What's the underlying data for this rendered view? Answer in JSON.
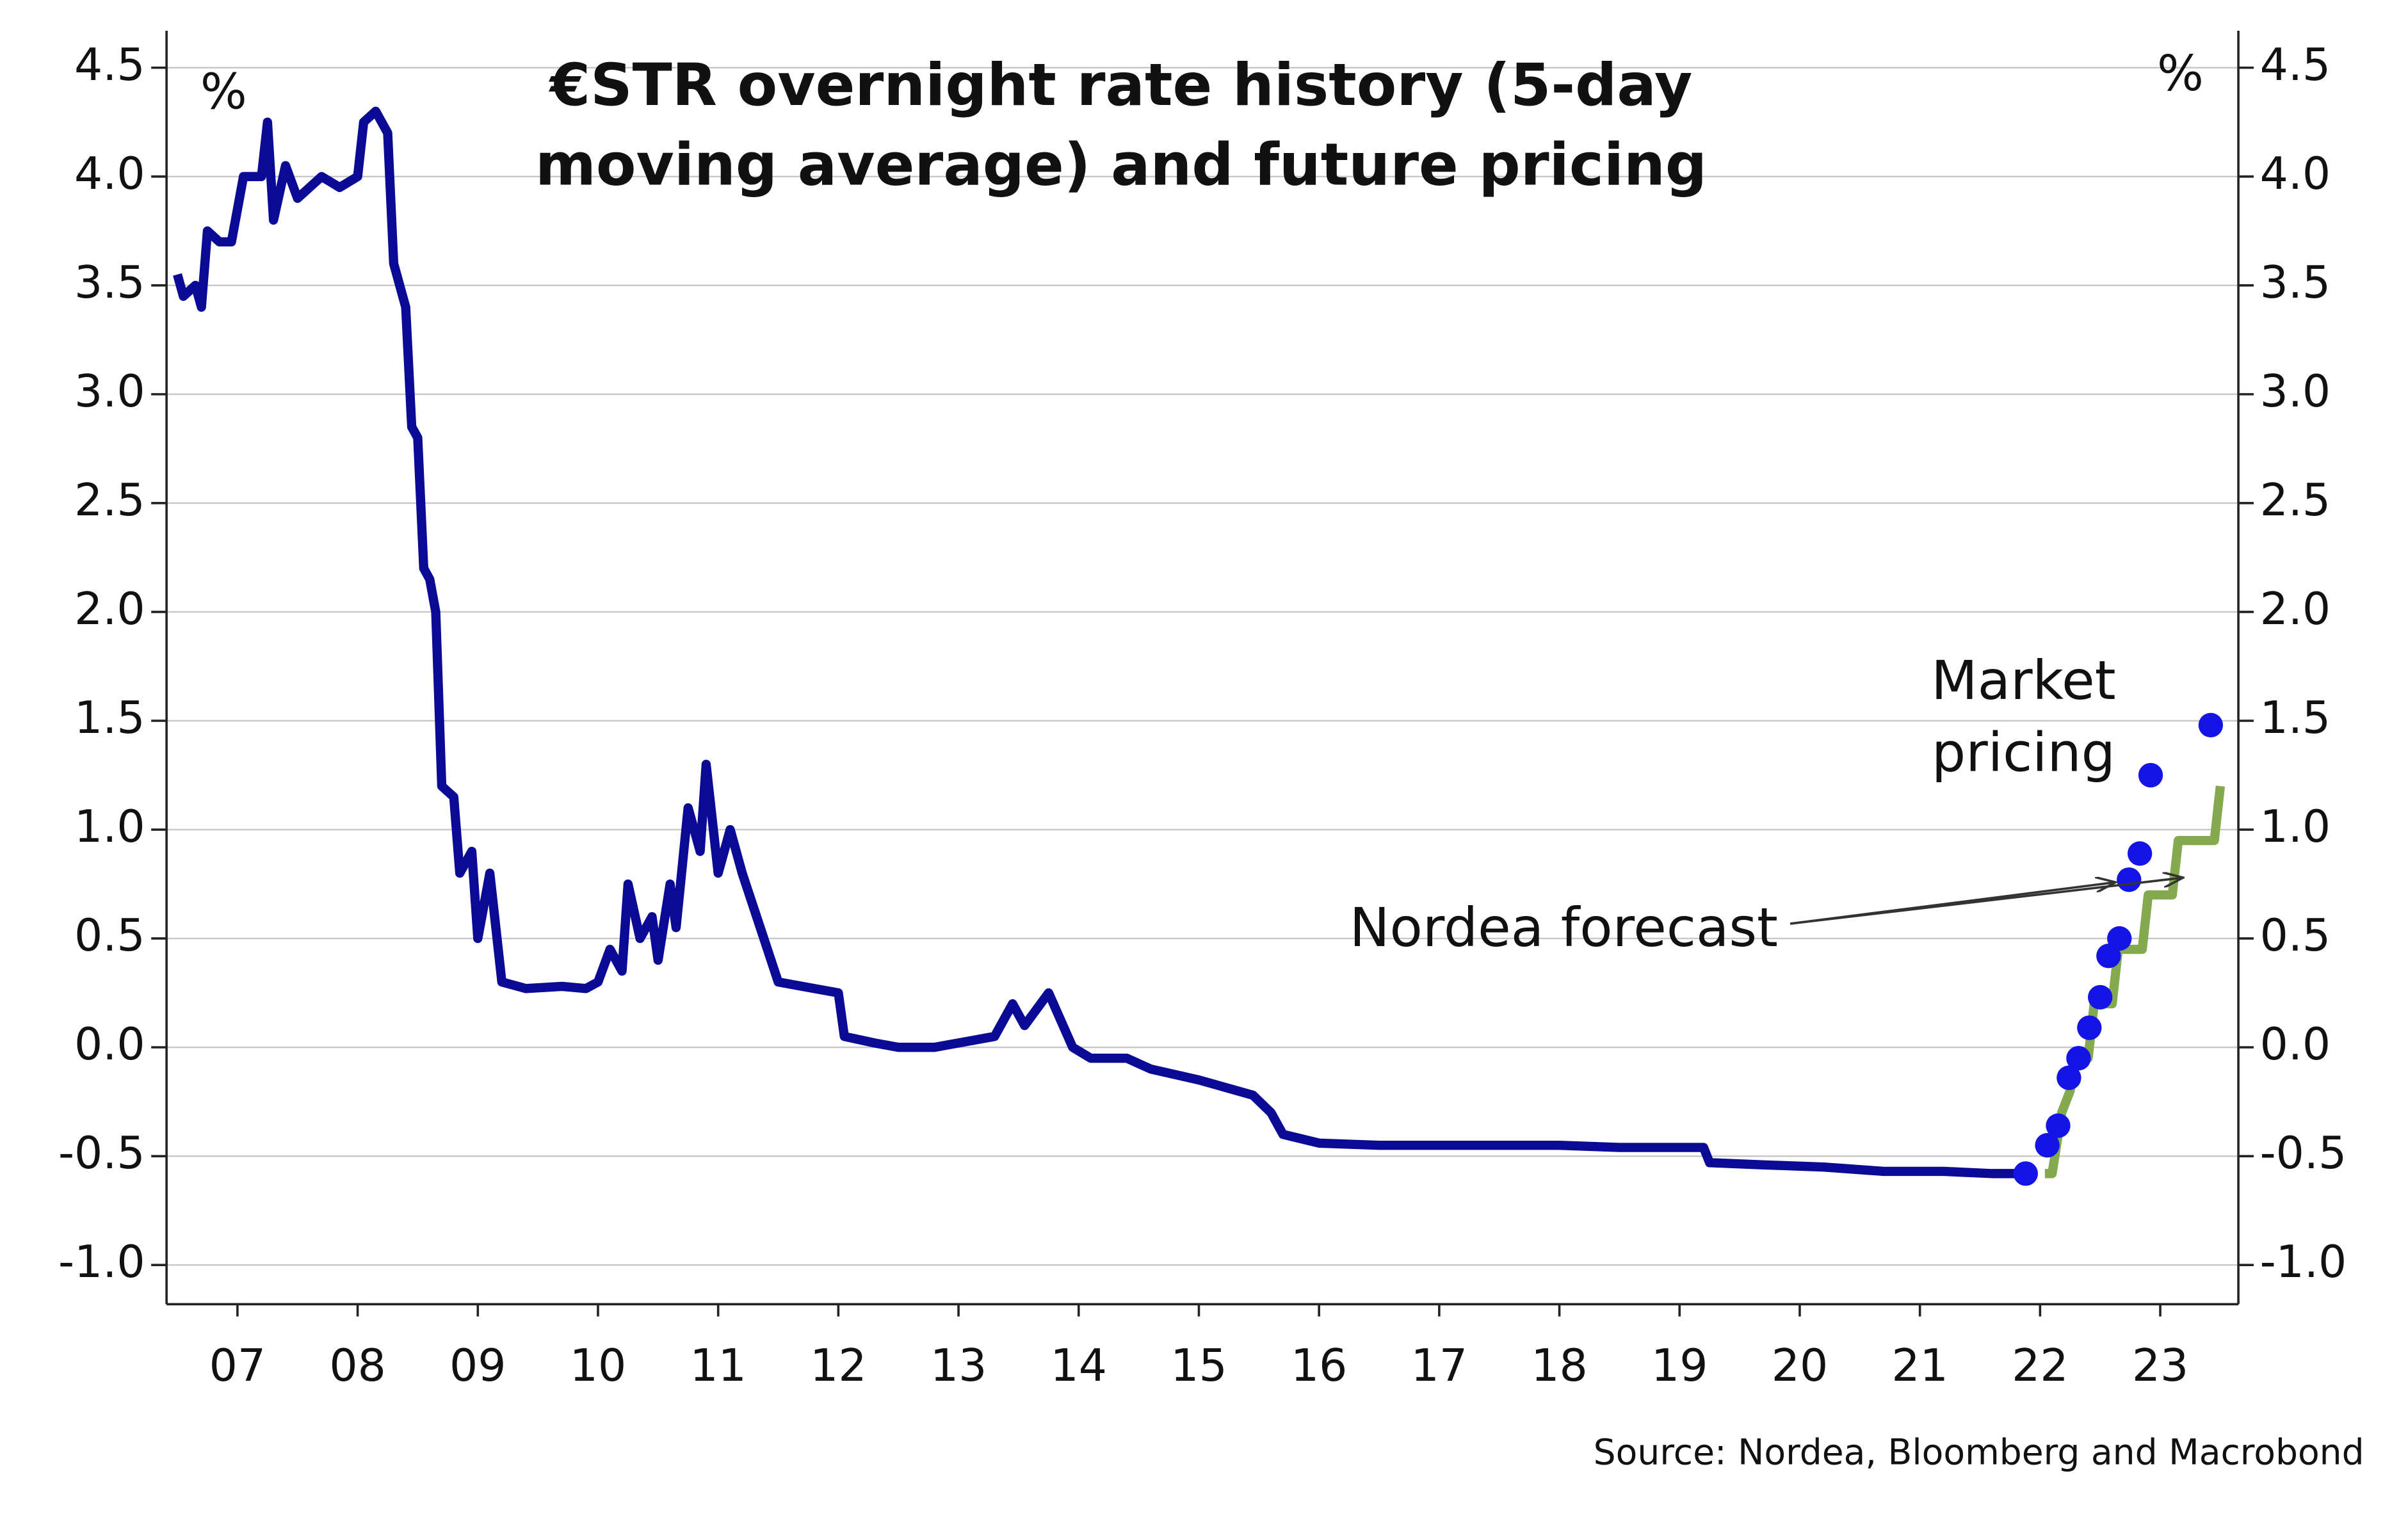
{
  "chart_data": {
    "type": "line",
    "title": [
      "€STR overnight rate history (5-day",
      "moving average) and future pricing"
    ],
    "y_unit": "%",
    "y2_unit": "%",
    "source": "Source: Nordea, Bloomberg and Macrobond",
    "annotations": [
      {
        "text": [
          "Market",
          "pricing"
        ],
        "color": "#1414e6"
      },
      {
        "text": "Nordea forecast",
        "color": "#84a94e"
      }
    ],
    "xlim": [
      2006.91,
      2024.15
    ],
    "xticks": [
      {
        "value": 2007.5,
        "label": "07"
      },
      {
        "value": 2008.5,
        "label": "08"
      },
      {
        "value": 2009.5,
        "label": "09"
      },
      {
        "value": 2010.5,
        "label": "10"
      },
      {
        "value": 2011.5,
        "label": "11"
      },
      {
        "value": 2012.5,
        "label": "12"
      },
      {
        "value": 2013.5,
        "label": "13"
      },
      {
        "value": 2014.5,
        "label": "14"
      },
      {
        "value": 2015.5,
        "label": "15"
      },
      {
        "value": 2016.5,
        "label": "16"
      },
      {
        "value": 2017.5,
        "label": "17"
      },
      {
        "value": 2018.5,
        "label": "18"
      },
      {
        "value": 2019.5,
        "label": "19"
      },
      {
        "value": 2020.5,
        "label": "20"
      },
      {
        "value": 2021.5,
        "label": "21"
      },
      {
        "value": 2022.5,
        "label": "22"
      },
      {
        "value": 2023.5,
        "label": "23"
      }
    ],
    "ylim": [
      -1.18,
      4.67
    ],
    "yticks": [
      4.5,
      {
        "value": 4,
        "label": "4.0"
      },
      3.5,
      {
        "value": 3,
        "label": "3.0"
      },
      2.5,
      {
        "value": 2,
        "label": "2.0"
      },
      1.5,
      {
        "value": 1,
        "label": "1.0"
      },
      0.5,
      {
        "value": 0,
        "label": "0.0"
      },
      -0.5,
      {
        "value": -1,
        "label": "-1.0"
      }
    ],
    "y2lim": [
      -1.18,
      4.67
    ],
    "y2ticks": [
      4.5,
      {
        "value": 4,
        "label": "4.0"
      },
      3.5,
      {
        "value": 3,
        "label": "3.0"
      },
      2.5,
      {
        "value": 2,
        "label": "2.0"
      },
      1.5,
      {
        "value": 1,
        "label": "1.0"
      },
      0.5,
      {
        "value": 0,
        "label": "0.0"
      },
      -0.5,
      {
        "value": -1,
        "label": "-1.0"
      }
    ],
    "grid": true,
    "series": [
      {
        "style": "line",
        "color": "#0a0a96",
        "x": [
          2007.0,
          2007.05,
          2007.15,
          2007.2,
          2007.25,
          2007.35,
          2007.45,
          2007.55,
          2007.7,
          2007.75,
          2007.8,
          2007.9,
          2008.0,
          2008.2,
          2008.35,
          2008.5,
          2008.55,
          2008.65,
          2008.75,
          2008.8,
          2008.9,
          2008.95,
          2009.0,
          2009.05,
          2009.1,
          2009.15,
          2009.2,
          2009.3,
          2009.35,
          2009.45,
          2009.5,
          2009.6,
          2009.7,
          2009.9,
          2010.2,
          2010.4,
          2010.5,
          2010.6,
          2010.7,
          2010.75,
          2010.85,
          2010.95,
          2011.0,
          2011.1,
          2011.15,
          2011.25,
          2011.35,
          2011.4,
          2011.5,
          2011.6,
          2011.7,
          2012.0,
          2012.3,
          2012.5,
          2012.55,
          2012.8,
          2013.0,
          2013.3,
          2013.5,
          2013.8,
          2013.95,
          2014.05,
          2014.25,
          2014.45,
          2014.6,
          2014.9,
          2015.1,
          2015.5,
          2015.95,
          2016.1,
          2016.2,
          2016.5,
          2017.0,
          2017.5,
          2018.0,
          2018.5,
          2019.0,
          2019.7,
          2019.75,
          2020.2,
          2020.7,
          2021.2,
          2021.7,
          2022.1,
          2022.38
        ],
        "values": [
          3.55,
          3.45,
          3.5,
          3.4,
          3.75,
          3.7,
          3.7,
          4.0,
          4.0,
          4.25,
          3.8,
          4.05,
          3.9,
          4.0,
          3.95,
          4.0,
          4.25,
          4.3,
          4.2,
          3.6,
          3.4,
          2.85,
          2.8,
          2.2,
          2.15,
          2.0,
          1.2,
          1.15,
          0.8,
          0.9,
          0.5,
          0.8,
          0.3,
          0.27,
          0.28,
          0.27,
          0.3,
          0.45,
          0.35,
          0.75,
          0.5,
          0.6,
          0.4,
          0.75,
          0.55,
          1.1,
          0.9,
          1.3,
          0.8,
          1.0,
          0.8,
          0.3,
          0.27,
          0.25,
          0.05,
          0.02,
          0.0,
          0.0,
          0.02,
          0.05,
          0.2,
          0.1,
          0.25,
          0.0,
          -0.05,
          -0.05,
          -0.1,
          -0.15,
          -0.22,
          -0.3,
          -0.4,
          -0.44,
          -0.45,
          -0.45,
          -0.45,
          -0.45,
          -0.46,
          -0.46,
          -0.53,
          -0.54,
          -0.55,
          -0.57,
          -0.57,
          -0.58,
          -0.58
        ]
      },
      {
        "style": "line",
        "color": "#84a94e",
        "x": [
          2022.54,
          2022.6,
          2022.68,
          2022.75,
          2022.8,
          2022.9,
          2022.95,
          2023.1,
          2023.15,
          2023.35,
          2023.4,
          2023.6,
          2023.65,
          2023.95,
          2024.0
        ],
        "values": [
          -0.58,
          -0.58,
          -0.3,
          -0.2,
          -0.05,
          -0.05,
          0.2,
          0.2,
          0.45,
          0.45,
          0.7,
          0.7,
          0.95,
          0.95,
          1.2
        ]
      },
      {
        "style": "dots",
        "color": "#1414e6",
        "x": [
          2022.38,
          2022.56,
          2022.65,
          2022.74,
          2022.82,
          2022.91,
          2023.0,
          2023.07,
          2023.16,
          2023.24,
          2023.33,
          2023.42,
          2023.92
        ],
        "values": [
          -0.58,
          -0.45,
          -0.36,
          -0.14,
          -0.05,
          0.09,
          0.23,
          0.42,
          0.5,
          0.77,
          0.89,
          1.25,
          1.48
        ]
      }
    ]
  }
}
